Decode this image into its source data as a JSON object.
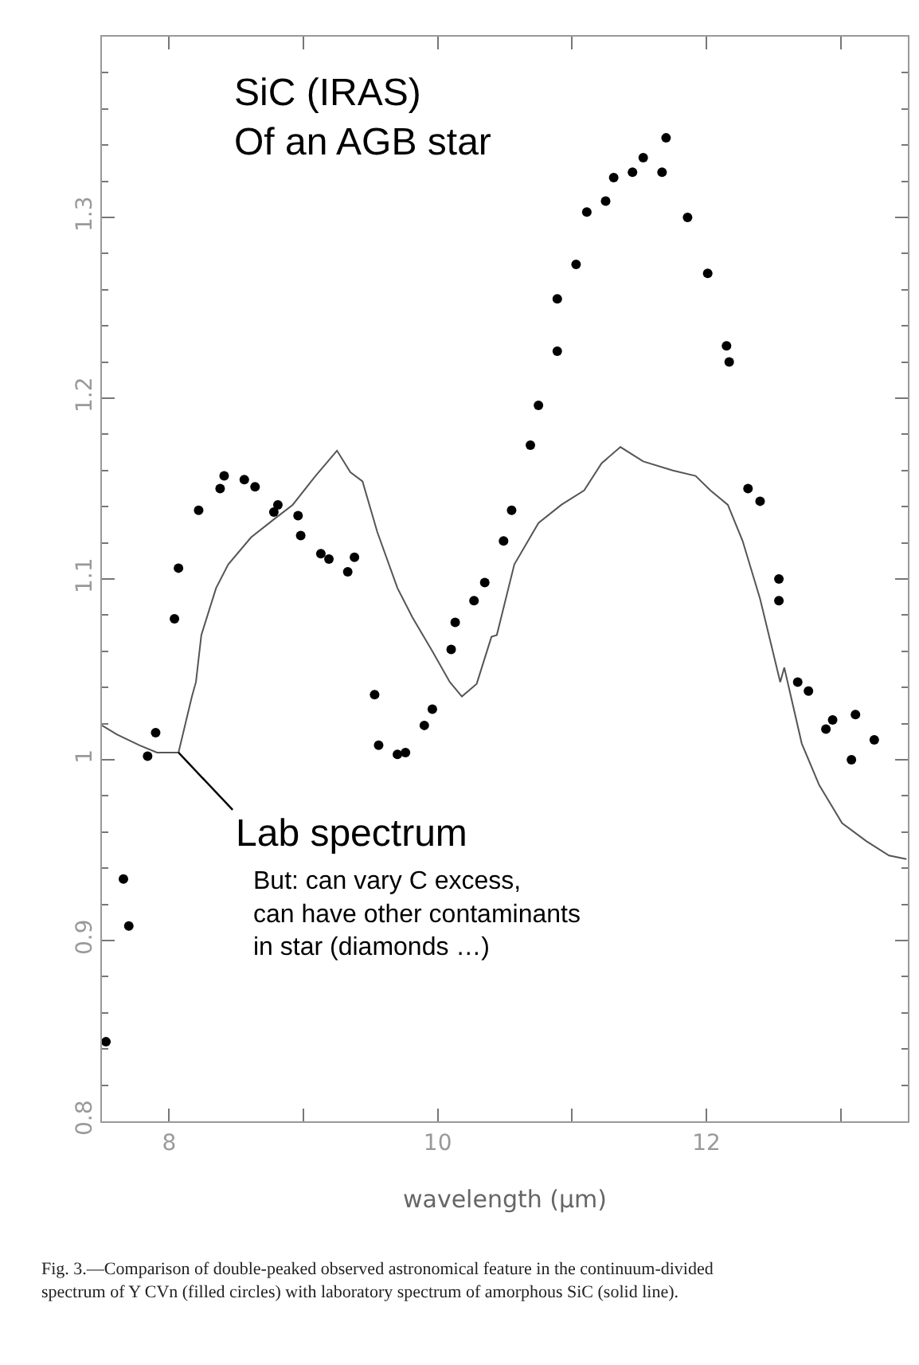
{
  "chart_data": {
    "type": "scatter",
    "title": "SiC (IRAS)\nOf an AGB star",
    "xlabel": "wavelength (μm)",
    "xlim": [
      7.5,
      13.5
    ],
    "ylim": [
      0.8,
      1.4
    ],
    "xticks": [
      8,
      {
        "value": 9,
        "label": null
      },
      10,
      {
        "value": 11,
        "label": null
      },
      12,
      {
        "value": 13,
        "label": null
      }
    ],
    "yticks": [
      0.8,
      {
        "value": 0.82,
        "label": null
      },
      {
        "value": 0.84,
        "label": null
      },
      {
        "value": 0.86,
        "label": null
      },
      {
        "value": 0.88,
        "label": null
      },
      0.9,
      {
        "value": 0.92,
        "label": null
      },
      {
        "value": 0.94,
        "label": null
      },
      {
        "value": 0.96,
        "label": null
      },
      {
        "value": 0.98,
        "label": null
      },
      1,
      {
        "value": 1.02,
        "label": null
      },
      {
        "value": 1.04,
        "label": null
      },
      {
        "value": 1.06,
        "label": null
      },
      {
        "value": 1.08,
        "label": null
      },
      1.1,
      {
        "value": 1.12,
        "label": null
      },
      {
        "value": 1.14,
        "label": null
      },
      {
        "value": 1.16,
        "label": null
      },
      {
        "value": 1.18,
        "label": null
      },
      1.2,
      {
        "value": 1.22,
        "label": null
      },
      {
        "value": 1.24,
        "label": null
      },
      {
        "value": 1.26,
        "label": null
      },
      {
        "value": 1.28,
        "label": null
      },
      1.3,
      {
        "value": 1.32,
        "label": null
      },
      {
        "value": 1.34,
        "label": null
      },
      {
        "value": 1.36,
        "label": null
      },
      {
        "value": 1.38,
        "label": null
      }
    ],
    "series": [
      {
        "marker": "circle",
        "color": "#000000",
        "x": [
          7.53,
          7.66,
          7.7,
          7.84,
          7.9,
          8.04,
          8.07,
          8.22,
          8.38,
          8.41,
          8.56,
          8.64,
          8.78,
          8.81,
          8.96,
          8.98,
          9.13,
          9.19,
          9.33,
          9.38,
          9.53,
          9.56,
          9.7,
          9.76,
          9.9,
          9.96,
          10.1,
          10.13,
          10.27,
          10.35,
          10.49,
          10.55,
          10.69,
          10.75,
          10.89,
          10.89,
          11.03,
          11.11,
          11.25,
          11.31,
          11.45,
          11.53,
          11.67,
          11.7,
          11.86,
          12.01,
          12.15,
          12.17,
          12.31,
          12.4,
          12.54,
          12.54,
          12.68,
          12.76,
          12.89,
          12.94,
          13.08,
          13.11,
          13.25
        ],
        "values": [
          0.844,
          0.934,
          0.908,
          1.002,
          1.015,
          1.078,
          1.106,
          1.138,
          1.15,
          1.157,
          1.155,
          1.151,
          1.137,
          1.141,
          1.135,
          1.124,
          1.114,
          1.111,
          1.104,
          1.112,
          1.036,
          1.008,
          1.003,
          1.004,
          1.019,
          1.028,
          1.061,
          1.076,
          1.088,
          1.098,
          1.121,
          1.138,
          1.174,
          1.196,
          1.226,
          1.255,
          1.274,
          1.303,
          1.309,
          1.322,
          1.325,
          1.333,
          1.325,
          1.344,
          1.3,
          1.269,
          1.229,
          1.22,
          1.15,
          1.143,
          1.1,
          1.088,
          1.043,
          1.038,
          1.017,
          1.022,
          1.0,
          1.025,
          1.011
        ]
      },
      {
        "type": "line",
        "marker": "none",
        "line_style": "solid",
        "color": "#555555",
        "x": [
          7.5,
          7.61,
          7.78,
          7.91,
          8.07,
          8.17,
          8.2,
          8.24,
          8.35,
          8.44,
          8.61,
          8.78,
          8.92,
          9.09,
          9.25,
          9.35,
          9.44,
          9.55,
          9.7,
          9.81,
          9.96,
          10.09,
          10.18,
          10.29,
          10.4,
          10.44,
          10.57,
          10.75,
          10.92,
          11.09,
          11.22,
          11.36,
          11.53,
          11.75,
          11.92,
          12.03,
          12.16,
          12.27,
          12.4,
          12.55,
          12.58,
          12.71,
          12.84,
          13.01,
          13.19,
          13.36,
          13.49
        ],
        "values": [
          1.019,
          1.014,
          1.008,
          1.004,
          1.004,
          1.035,
          1.043,
          1.069,
          1.095,
          1.108,
          1.123,
          1.133,
          1.141,
          1.157,
          1.171,
          1.159,
          1.154,
          1.126,
          1.095,
          1.079,
          1.06,
          1.043,
          1.035,
          1.042,
          1.068,
          1.069,
          1.108,
          1.131,
          1.141,
          1.149,
          1.164,
          1.173,
          1.165,
          1.16,
          1.157,
          1.149,
          1.141,
          1.121,
          1.089,
          1.043,
          1.051,
          1.009,
          0.986,
          0.965,
          0.955,
          0.947,
          0.945
        ]
      }
    ],
    "annotations": [
      {
        "text": "Lab spectrum",
        "x": 8.07,
        "y": 1.004
      },
      "But: can vary C excess,\ncan have other contaminants\nin star (diamonds …)",
      "Fig. 3.—Comparison of double-peaked observed astronomical feature in the continuum-divided spectrum of Y CVn (filled circles) with laboratory spectrum of amorphous SiC (solid line)."
    ]
  }
}
